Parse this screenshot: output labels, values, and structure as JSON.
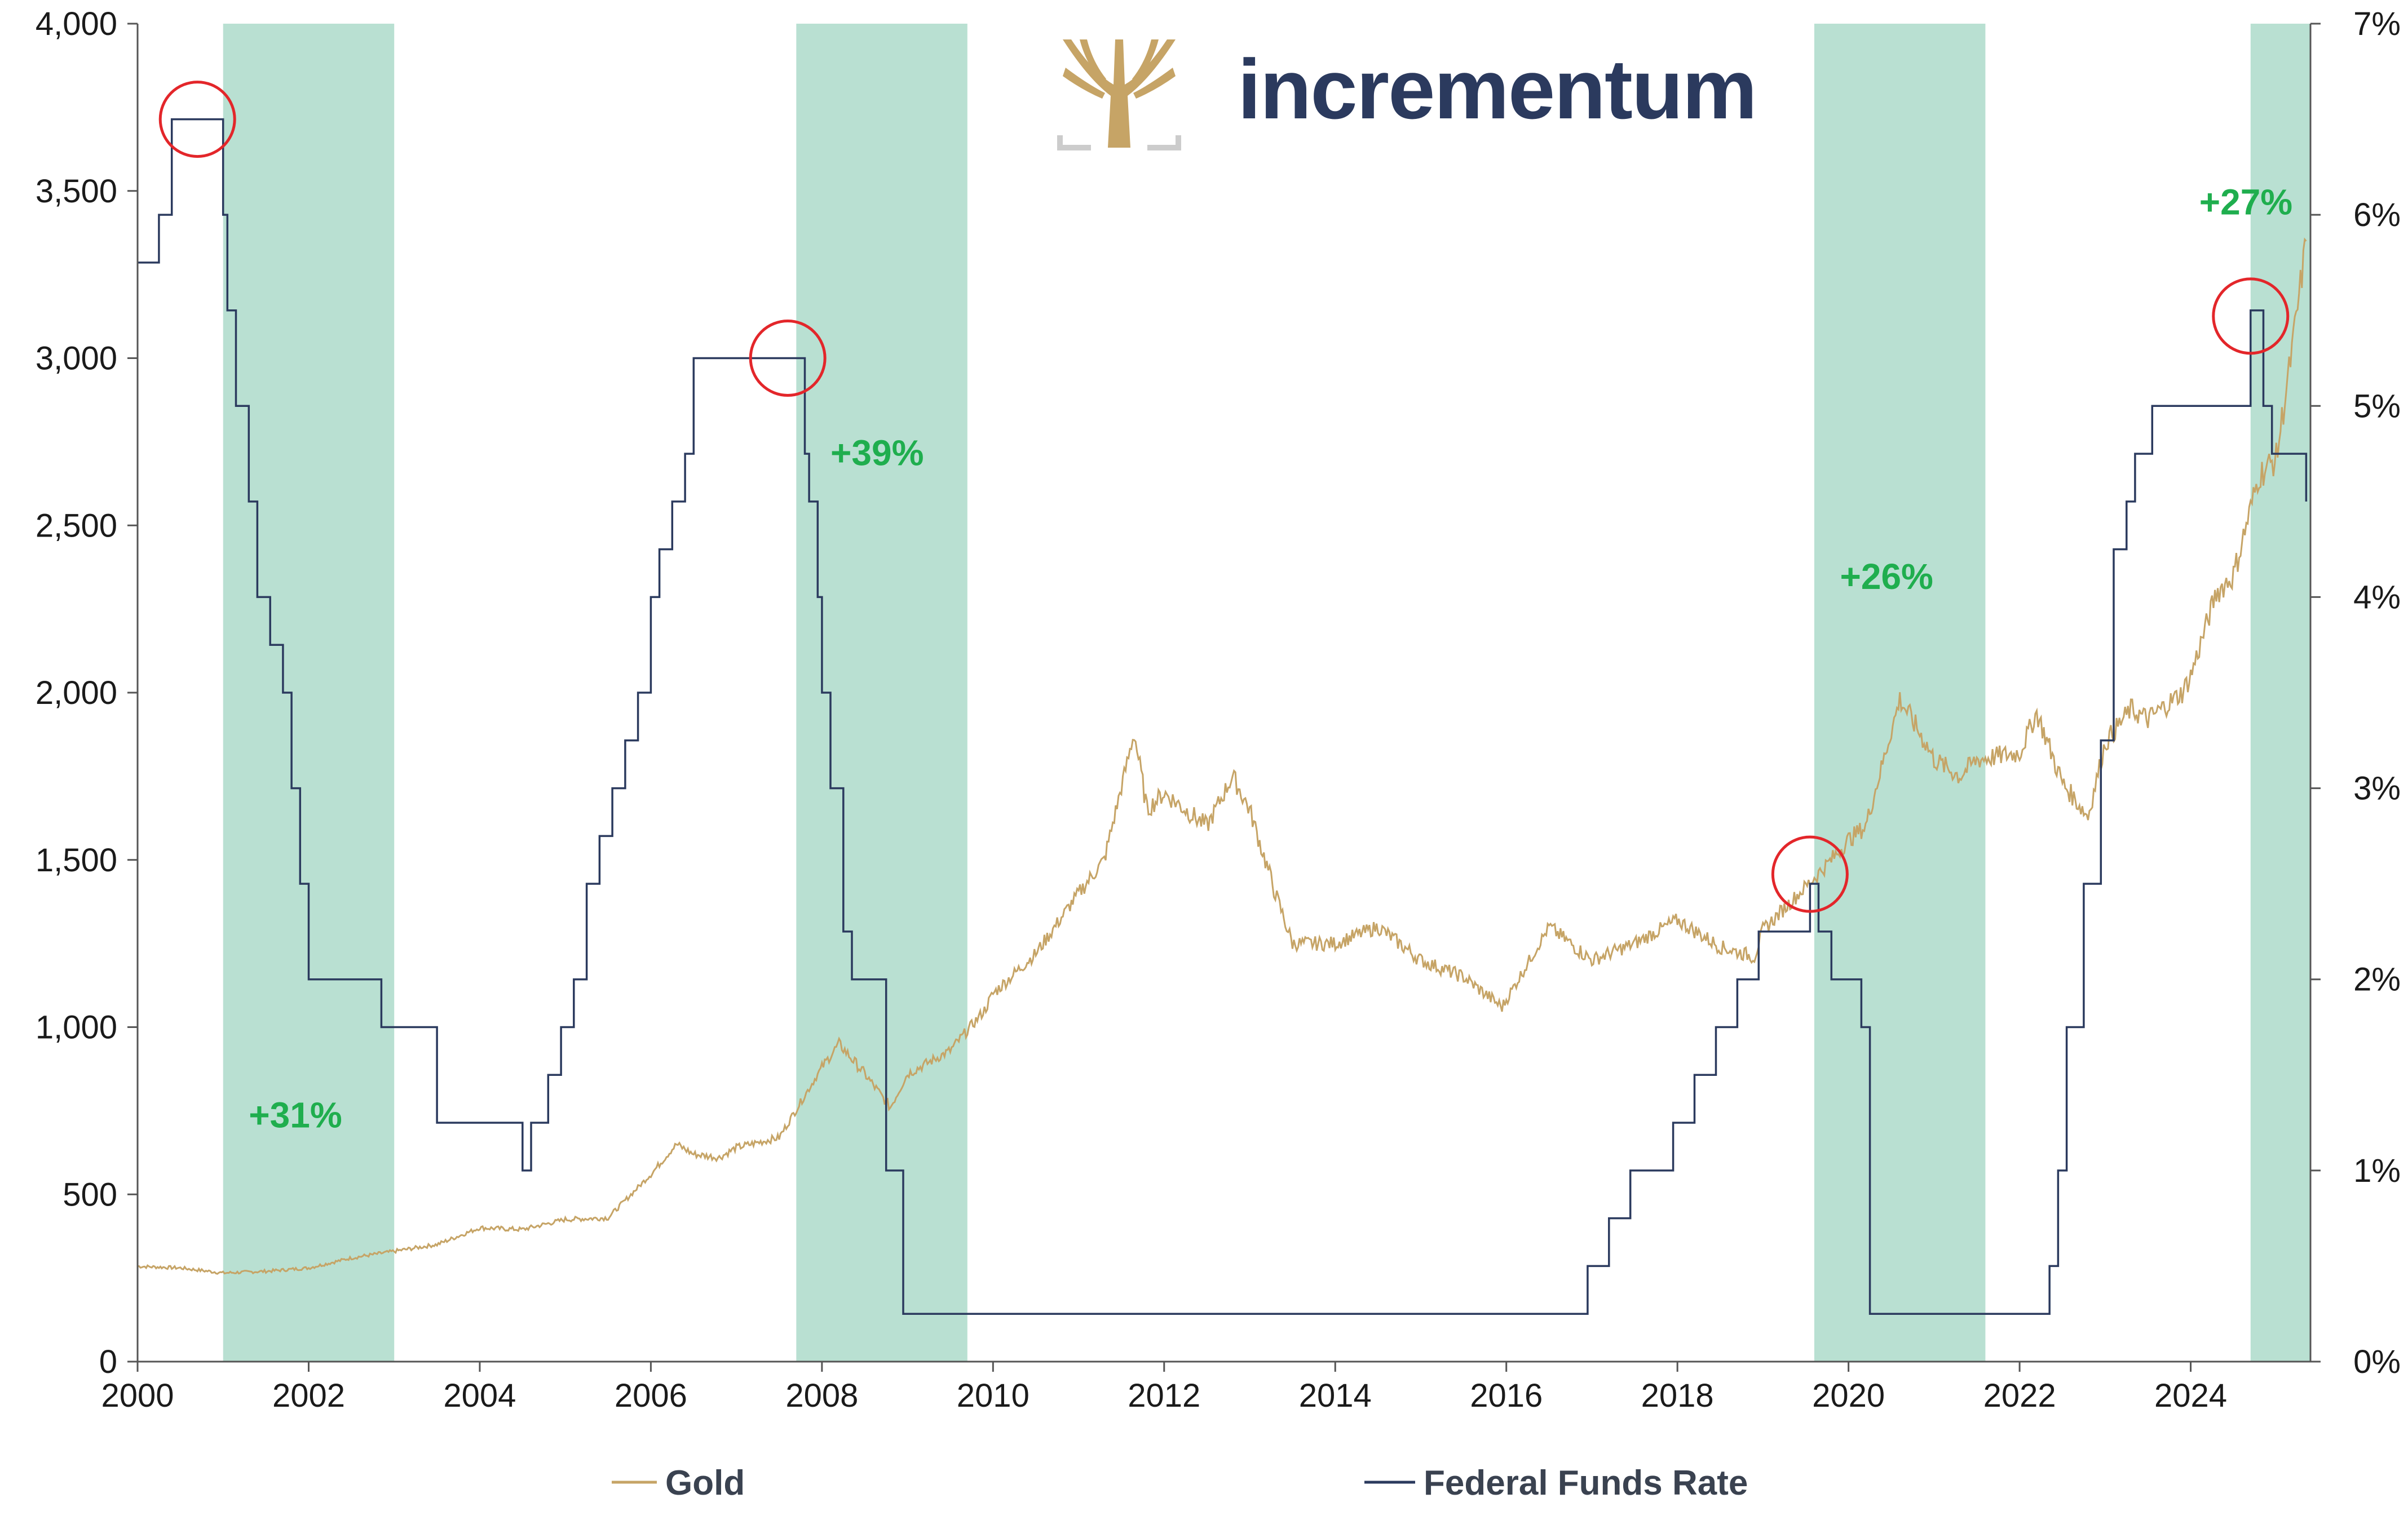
{
  "logo": {
    "text": "incrementum"
  },
  "chart_data": {
    "type": "line",
    "x_ticks": [
      "2000",
      "2002",
      "2004",
      "2006",
      "2008",
      "2010",
      "2012",
      "2014",
      "2016",
      "2018",
      "2020",
      "2022",
      "2024"
    ],
    "xlim": [
      2000,
      2025.4
    ],
    "y_left": {
      "ticks": [
        "0",
        "500",
        "1,000",
        "1,500",
        "2,000",
        "2,500",
        "3,000",
        "3,500",
        "4,000"
      ],
      "ylim": [
        0,
        4000
      ]
    },
    "y_right": {
      "ticks": [
        "0%",
        "1%",
        "2%",
        "3%",
        "4%",
        "5%",
        "6%",
        "7%"
      ],
      "ylim": [
        0,
        7
      ]
    },
    "grid": false,
    "legend_position": "bottom",
    "colors": {
      "gold": "#c6a466",
      "fed": "#2b3a5e",
      "shade": "#b9e0d2",
      "circle": "#e3262a",
      "annotation": "#1fae4e"
    },
    "shaded_periods": [
      {
        "start": 2001.0,
        "end": 2003.0
      },
      {
        "start": 2007.7,
        "end": 2009.7
      },
      {
        "start": 2019.6,
        "end": 2021.6
      },
      {
        "start": 2024.7,
        "end": 2025.4
      }
    ],
    "annotations": [
      {
        "text": "+31%",
        "x": 2001.3,
        "y": 700
      },
      {
        "text": "+39%",
        "x": 2008.1,
        "y": 2680
      },
      {
        "text": "+26%",
        "x": 2019.9,
        "y": 2310
      },
      {
        "text": "+27%",
        "x": 2024.1,
        "y": 3430
      }
    ],
    "markers": [
      {
        "x": 2000.7,
        "rate": 6.5
      },
      {
        "x": 2007.6,
        "rate": 5.25
      },
      {
        "x": 2019.55,
        "rate": 2.55
      },
      {
        "x": 2024.7,
        "rate": 5.47
      }
    ],
    "series": [
      {
        "name": "Gold",
        "axis": "left",
        "x": [
          2000.0,
          2000.5,
          2001.0,
          2001.5,
          2002.0,
          2002.5,
          2003.0,
          2003.5,
          2004.0,
          2004.5,
          2005.0,
          2005.5,
          2006.0,
          2006.3,
          2006.5,
          2006.8,
          2007.0,
          2007.5,
          2008.0,
          2008.2,
          2008.5,
          2008.8,
          2009.0,
          2009.5,
          2009.9,
          2010.0,
          2010.5,
          2011.0,
          2011.3,
          2011.65,
          2011.8,
          2012.0,
          2012.5,
          2012.8,
          2013.0,
          2013.3,
          2013.5,
          2014.0,
          2014.5,
          2015.0,
          2015.5,
          2015.95,
          2016.5,
          2017.0,
          2017.5,
          2018.0,
          2018.5,
          2018.9,
          2019.0,
          2019.5,
          2019.8,
          2020.0,
          2020.2,
          2020.6,
          2020.9,
          2021.0,
          2021.3,
          2021.5,
          2022.0,
          2022.2,
          2022.5,
          2022.8,
          2023.0,
          2023.3,
          2023.5,
          2023.9,
          2024.0,
          2024.3,
          2024.5,
          2024.8,
          2025.0,
          2025.2,
          2025.35
        ],
        "values": [
          285,
          280,
          265,
          270,
          280,
          310,
          330,
          350,
          400,
          395,
          425,
          430,
          560,
          650,
          620,
          610,
          640,
          670,
          880,
          950,
          860,
          760,
          860,
          930,
          1050,
          1100,
          1220,
          1400,
          1500,
          1880,
          1650,
          1700,
          1600,
          1750,
          1650,
          1400,
          1250,
          1250,
          1300,
          1200,
          1150,
          1060,
          1300,
          1200,
          1250,
          1320,
          1240,
          1210,
          1290,
          1420,
          1500,
          1560,
          1600,
          1980,
          1850,
          1800,
          1750,
          1800,
          1820,
          1940,
          1730,
          1630,
          1850,
          1950,
          1920,
          2000,
          2050,
          2300,
          2350,
          2650,
          2700,
          3050,
          3350
        ]
      },
      {
        "name": "Federal Funds Rate",
        "axis": "right",
        "x": [
          2000.0,
          2000.1,
          2000.25,
          2000.4,
          2000.9,
          2001.0,
          2001.05,
          2001.15,
          2001.3,
          2001.4,
          2001.55,
          2001.7,
          2001.8,
          2001.9,
          2002.0,
          2002.85,
          2003.5,
          2004.5,
          2004.6,
          2004.8,
          2004.95,
          2005.1,
          2005.25,
          2005.4,
          2005.55,
          2005.7,
          2005.85,
          2006.0,
          2006.1,
          2006.25,
          2006.4,
          2006.5,
          2007.7,
          2007.8,
          2007.85,
          2007.95,
          2008.0,
          2008.1,
          2008.25,
          2008.35,
          2008.75,
          2008.95,
          2015.95,
          2016.95,
          2017.2,
          2017.45,
          2017.95,
          2018.2,
          2018.45,
          2018.7,
          2018.95,
          2019.55,
          2019.65,
          2019.8,
          2020.15,
          2020.25,
          2022.2,
          2022.35,
          2022.45,
          2022.55,
          2022.75,
          2022.95,
          2023.1,
          2023.25,
          2023.35,
          2023.55,
          2024.7,
          2024.85,
          2024.95,
          2025.35
        ],
        "values": [
          5.75,
          5.75,
          6.0,
          6.5,
          6.5,
          6.0,
          5.5,
          5.0,
          4.5,
          4.0,
          3.75,
          3.5,
          3.0,
          2.5,
          2.0,
          1.75,
          1.25,
          1.0,
          1.25,
          1.5,
          1.75,
          2.0,
          2.5,
          2.75,
          3.0,
          3.25,
          3.5,
          4.0,
          4.25,
          4.5,
          4.75,
          5.25,
          5.25,
          4.75,
          4.5,
          4.0,
          3.5,
          3.0,
          2.25,
          2.0,
          1.0,
          0.25,
          0.25,
          0.5,
          0.75,
          1.0,
          1.25,
          1.5,
          1.75,
          2.0,
          2.25,
          2.5,
          2.25,
          2.0,
          1.75,
          0.25,
          0.25,
          0.5,
          1.0,
          1.75,
          2.5,
          3.25,
          4.25,
          4.5,
          4.75,
          5.0,
          5.5,
          5.0,
          4.75,
          4.5
        ]
      }
    ]
  }
}
